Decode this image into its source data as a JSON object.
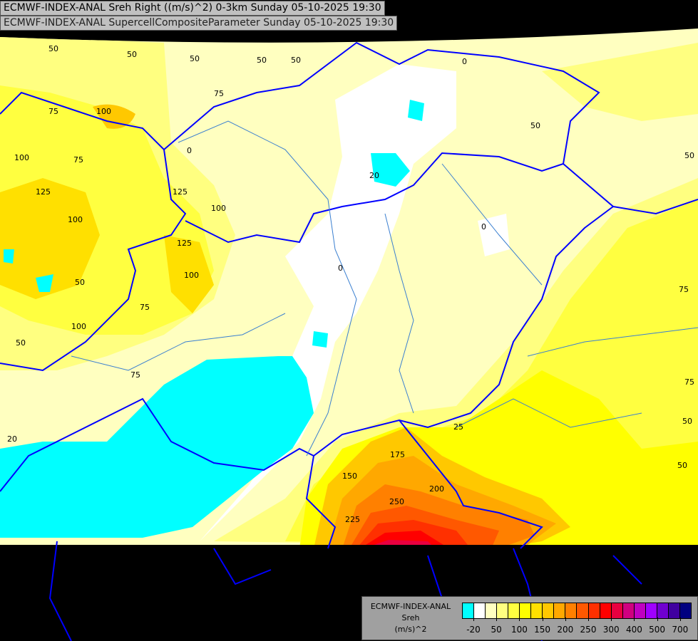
{
  "header": {
    "line1": "ECMWF-INDEX-ANAL Sreh Right ((m/s)^2) 0-3km Sunday 05-10-2025 19:30",
    "line2": "ECMWF-INDEX-ANAL SupercellCompositeParameter Sunday 05-10-2025 19:30"
  },
  "legend": {
    "model": "ECMWF-INDEX-ANAL",
    "parameter": "Sreh",
    "unit": "(m/s)^2",
    "colors": [
      "#00ffff",
      "#ffffff",
      "#ffffc0",
      "#ffff80",
      "#ffff40",
      "#ffff00",
      "#ffe000",
      "#ffc800",
      "#ffa800",
      "#ff8000",
      "#ff5800",
      "#ff3000",
      "#ff0000",
      "#e80040",
      "#d00080",
      "#c000c0",
      "#a000ff",
      "#7000d0",
      "#4000a0",
      "#000080"
    ],
    "ticks": [
      "-20",
      "50",
      "100",
      "150",
      "200",
      "250",
      "300",
      "400",
      "500",
      "700"
    ]
  },
  "map": {
    "contour_labels": [
      "50",
      "50",
      "50",
      "50",
      "50",
      "75",
      "100",
      "100",
      "75",
      "125",
      "100",
      "0",
      "125",
      "100",
      "75",
      "50",
      "100",
      "50",
      "75",
      "0",
      "20",
      "0",
      "0",
      "50",
      "50",
      "75",
      "75",
      "50",
      "50",
      "20",
      "75",
      "125",
      "100",
      "150",
      "175",
      "200",
      "225",
      "250",
      "25"
    ]
  }
}
